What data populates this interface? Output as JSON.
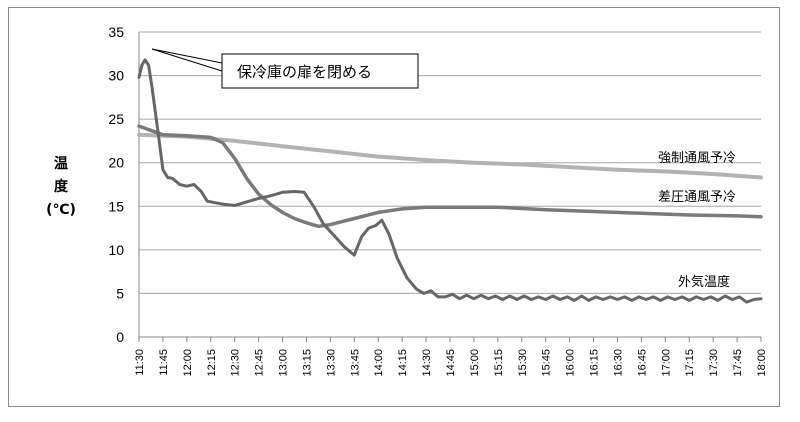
{
  "chart_data": {
    "type": "line",
    "ylabel": [
      "温",
      "度",
      "(℃)"
    ],
    "ylim": [
      0,
      35
    ],
    "yticks": [
      0,
      5,
      10,
      15,
      20,
      25,
      30,
      35
    ],
    "grid": true,
    "x_categories": [
      "11:30",
      "11:45",
      "12:00",
      "12:15",
      "12:30",
      "12:45",
      "13:00",
      "13:15",
      "13:30",
      "13:45",
      "14:00",
      "14:15",
      "14:30",
      "14:45",
      "15:00",
      "15:15",
      "15:30",
      "15:45",
      "16:00",
      "16:15",
      "16:30",
      "16:45",
      "17:00",
      "17:15",
      "17:30",
      "17:45",
      "18:00"
    ],
    "annotation": "保冷庫の扉を閉める",
    "series": [
      {
        "name": "強制通風予冷",
        "color": "#b3b3b3",
        "points": [
          [
            0,
            23.2
          ],
          [
            2,
            23.0
          ],
          [
            4,
            22.5
          ],
          [
            6,
            21.9
          ],
          [
            8,
            21.3
          ],
          [
            10,
            20.7
          ],
          [
            12,
            20.3
          ],
          [
            14,
            20.0
          ],
          [
            16,
            19.8
          ],
          [
            18,
            19.5
          ],
          [
            20,
            19.2
          ],
          [
            22,
            19.0
          ],
          [
            24,
            18.7
          ],
          [
            26,
            18.3
          ]
        ]
      },
      {
        "name": "差圧通風予冷",
        "color": "#7a7a7a",
        "points": [
          [
            0,
            24.2
          ],
          [
            0.6,
            23.6
          ],
          [
            1,
            23.2
          ],
          [
            2,
            23.1
          ],
          [
            3,
            22.9
          ],
          [
            3.5,
            22.3
          ],
          [
            4,
            20.5
          ],
          [
            4.5,
            18.2
          ],
          [
            5,
            16.4
          ],
          [
            5.5,
            15.2
          ],
          [
            6,
            14.3
          ],
          [
            6.5,
            13.6
          ],
          [
            7,
            13.1
          ],
          [
            7.5,
            12.7
          ],
          [
            8,
            12.9
          ],
          [
            9,
            13.6
          ],
          [
            10,
            14.3
          ],
          [
            11,
            14.7
          ],
          [
            12,
            14.9
          ],
          [
            13,
            14.9
          ],
          [
            15,
            14.9
          ],
          [
            17,
            14.6
          ],
          [
            19,
            14.4
          ],
          [
            21,
            14.2
          ],
          [
            23,
            14.0
          ],
          [
            25,
            13.9
          ],
          [
            26,
            13.8
          ]
        ]
      },
      {
        "name": "外気温度",
        "color": "#666666",
        "points": [
          [
            0,
            29.8
          ],
          [
            0.12,
            31.2
          ],
          [
            0.25,
            31.8
          ],
          [
            0.4,
            31.2
          ],
          [
            0.55,
            28.5
          ],
          [
            0.75,
            24.5
          ],
          [
            1,
            19.2
          ],
          [
            1.2,
            18.3
          ],
          [
            1.4,
            18.2
          ],
          [
            1.7,
            17.5
          ],
          [
            2,
            17.3
          ],
          [
            2.3,
            17.5
          ],
          [
            2.6,
            16.7
          ],
          [
            2.85,
            15.6
          ],
          [
            3.2,
            15.4
          ],
          [
            3.6,
            15.2
          ],
          [
            4,
            15.1
          ],
          [
            4.5,
            15.5
          ],
          [
            5,
            15.9
          ],
          [
            5.5,
            16.2
          ],
          [
            6,
            16.6
          ],
          [
            6.5,
            16.7
          ],
          [
            6.9,
            16.6
          ],
          [
            7.3,
            15.0
          ],
          [
            7.7,
            13.0
          ],
          [
            8.2,
            11.5
          ],
          [
            8.6,
            10.3
          ],
          [
            9,
            9.4
          ],
          [
            9.3,
            11.5
          ],
          [
            9.6,
            12.5
          ],
          [
            9.9,
            12.8
          ],
          [
            10.15,
            13.4
          ],
          [
            10.45,
            11.8
          ],
          [
            10.8,
            9.0
          ],
          [
            11.2,
            6.8
          ],
          [
            11.6,
            5.5
          ],
          [
            11.9,
            5.0
          ],
          [
            12.2,
            5.3
          ],
          [
            12.5,
            4.6
          ],
          [
            12.8,
            4.6
          ],
          [
            13.1,
            4.9
          ],
          [
            13.4,
            4.4
          ],
          [
            13.7,
            4.8
          ],
          [
            14.0,
            4.4
          ],
          [
            14.3,
            4.8
          ],
          [
            14.6,
            4.4
          ],
          [
            14.9,
            4.7
          ],
          [
            15.2,
            4.3
          ],
          [
            15.5,
            4.7
          ],
          [
            15.8,
            4.3
          ],
          [
            16.1,
            4.7
          ],
          [
            16.4,
            4.3
          ],
          [
            16.7,
            4.6
          ],
          [
            17.0,
            4.3
          ],
          [
            17.3,
            4.7
          ],
          [
            17.6,
            4.3
          ],
          [
            17.9,
            4.6
          ],
          [
            18.2,
            4.2
          ],
          [
            18.5,
            4.7
          ],
          [
            18.8,
            4.2
          ],
          [
            19.1,
            4.6
          ],
          [
            19.4,
            4.3
          ],
          [
            19.7,
            4.6
          ],
          [
            20.0,
            4.3
          ],
          [
            20.3,
            4.6
          ],
          [
            20.6,
            4.2
          ],
          [
            20.9,
            4.6
          ],
          [
            21.2,
            4.3
          ],
          [
            21.5,
            4.6
          ],
          [
            21.8,
            4.2
          ],
          [
            22.1,
            4.6
          ],
          [
            22.4,
            4.3
          ],
          [
            22.7,
            4.6
          ],
          [
            23.0,
            4.2
          ],
          [
            23.3,
            4.6
          ],
          [
            23.6,
            4.3
          ],
          [
            23.9,
            4.6
          ],
          [
            24.2,
            4.2
          ],
          [
            24.5,
            4.7
          ],
          [
            24.8,
            4.3
          ],
          [
            25.1,
            4.6
          ],
          [
            25.4,
            4.0
          ],
          [
            25.7,
            4.3
          ],
          [
            26.0,
            4.4
          ]
        ]
      }
    ]
  }
}
